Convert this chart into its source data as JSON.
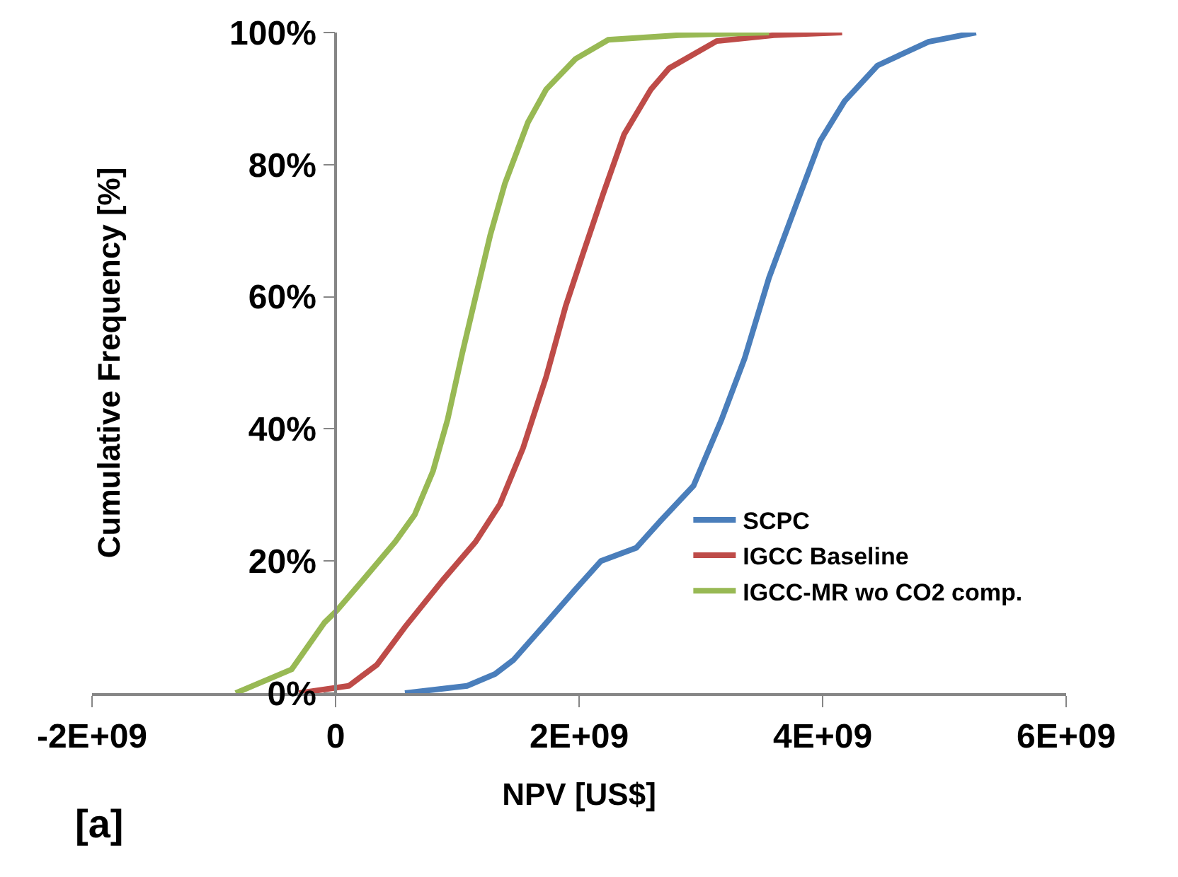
{
  "chart_data": {
    "type": "line",
    "xlabel": "NPV [US$]",
    "ylabel": "Cumulative Frequency [%]",
    "annotations": [
      "[a]"
    ],
    "series": [
      {
        "name": "SCPC",
        "color": "#4a7ebb",
        "x": [
          570000000.0,
          1080000000.0,
          1310000000.0,
          1460000000.0,
          1700000000.0,
          1970000000.0,
          2180000000.0,
          2470000000.0,
          2670000000.0,
          2940000000.0,
          3170000000.0,
          3360000000.0,
          3560000000.0,
          3790000000.0,
          3980000000.0,
          4180000000.0,
          4450000000.0,
          4870000000.0,
          5260000000.0
        ],
        "values": [
          0,
          1.1,
          2.9,
          5,
          10,
          15.7,
          20,
          22,
          26.1,
          31.4,
          41.4,
          50.7,
          62.9,
          74.3,
          83.6,
          89.6,
          95,
          98.6,
          100
        ]
      },
      {
        "name": "IGCC Baseline",
        "color": "#be4b48",
        "x": [
          -300000000.0,
          110000000.0,
          340000000.0,
          570000000.0,
          880000000.0,
          1150000000.0,
          1350000000.0,
          1540000000.0,
          1730000000.0,
          1890000000.0,
          2030000000.0,
          2200000000.0,
          2370000000.0,
          2590000000.0,
          2740000000.0,
          3130000000.0,
          3600000000.0,
          4160000000.0
        ],
        "values": [
          0,
          1.1,
          4.3,
          10,
          17.1,
          22.9,
          28.6,
          37.1,
          47.9,
          58.6,
          66.4,
          75.7,
          84.6,
          91.4,
          94.6,
          98.7,
          99.6,
          100
        ]
      },
      {
        "name": "IGCC-MR wo CO2 comp.",
        "color": "#98b954",
        "x": [
          -820000000.0,
          -360000000.0,
          -90000000.0,
          10000000.0,
          220000000.0,
          490000000.0,
          650000000.0,
          800000000.0,
          920000000.0,
          1040000000.0,
          1150000000.0,
          1270000000.0,
          1390000000.0,
          1580000000.0,
          1730000000.0,
          1970000000.0,
          2240000000.0,
          2820000000.0,
          3560000000.0
        ],
        "values": [
          0,
          3.6,
          10.7,
          12.5,
          17,
          22.9,
          27,
          33.6,
          41.4,
          51.4,
          60,
          69.3,
          77.1,
          86.4,
          91.4,
          96,
          98.9,
          99.6,
          100
        ]
      }
    ],
    "xlim": [
      -2000000000.0,
      6000000000.0
    ],
    "xticks": [
      {
        "value": -2000000000.0,
        "label": "-2E+09"
      },
      0,
      {
        "value": 2000000000.0,
        "label": "2E+09"
      },
      {
        "value": 4000000000.0,
        "label": "4E+09"
      },
      {
        "value": 6000000000.0,
        "label": "6E+09"
      }
    ],
    "ylim": [
      0,
      100
    ],
    "yticks": [
      {
        "value": 0,
        "label": "0%"
      },
      {
        "value": 20,
        "label": "20%"
      },
      {
        "value": 40,
        "label": "40%"
      },
      {
        "value": 60,
        "label": "60%"
      },
      {
        "value": 80,
        "label": "80%"
      },
      {
        "value": 100,
        "label": "100%"
      }
    ],
    "grid": false,
    "legend": "bottom right",
    "marker": "none",
    "line_style": "solid"
  }
}
